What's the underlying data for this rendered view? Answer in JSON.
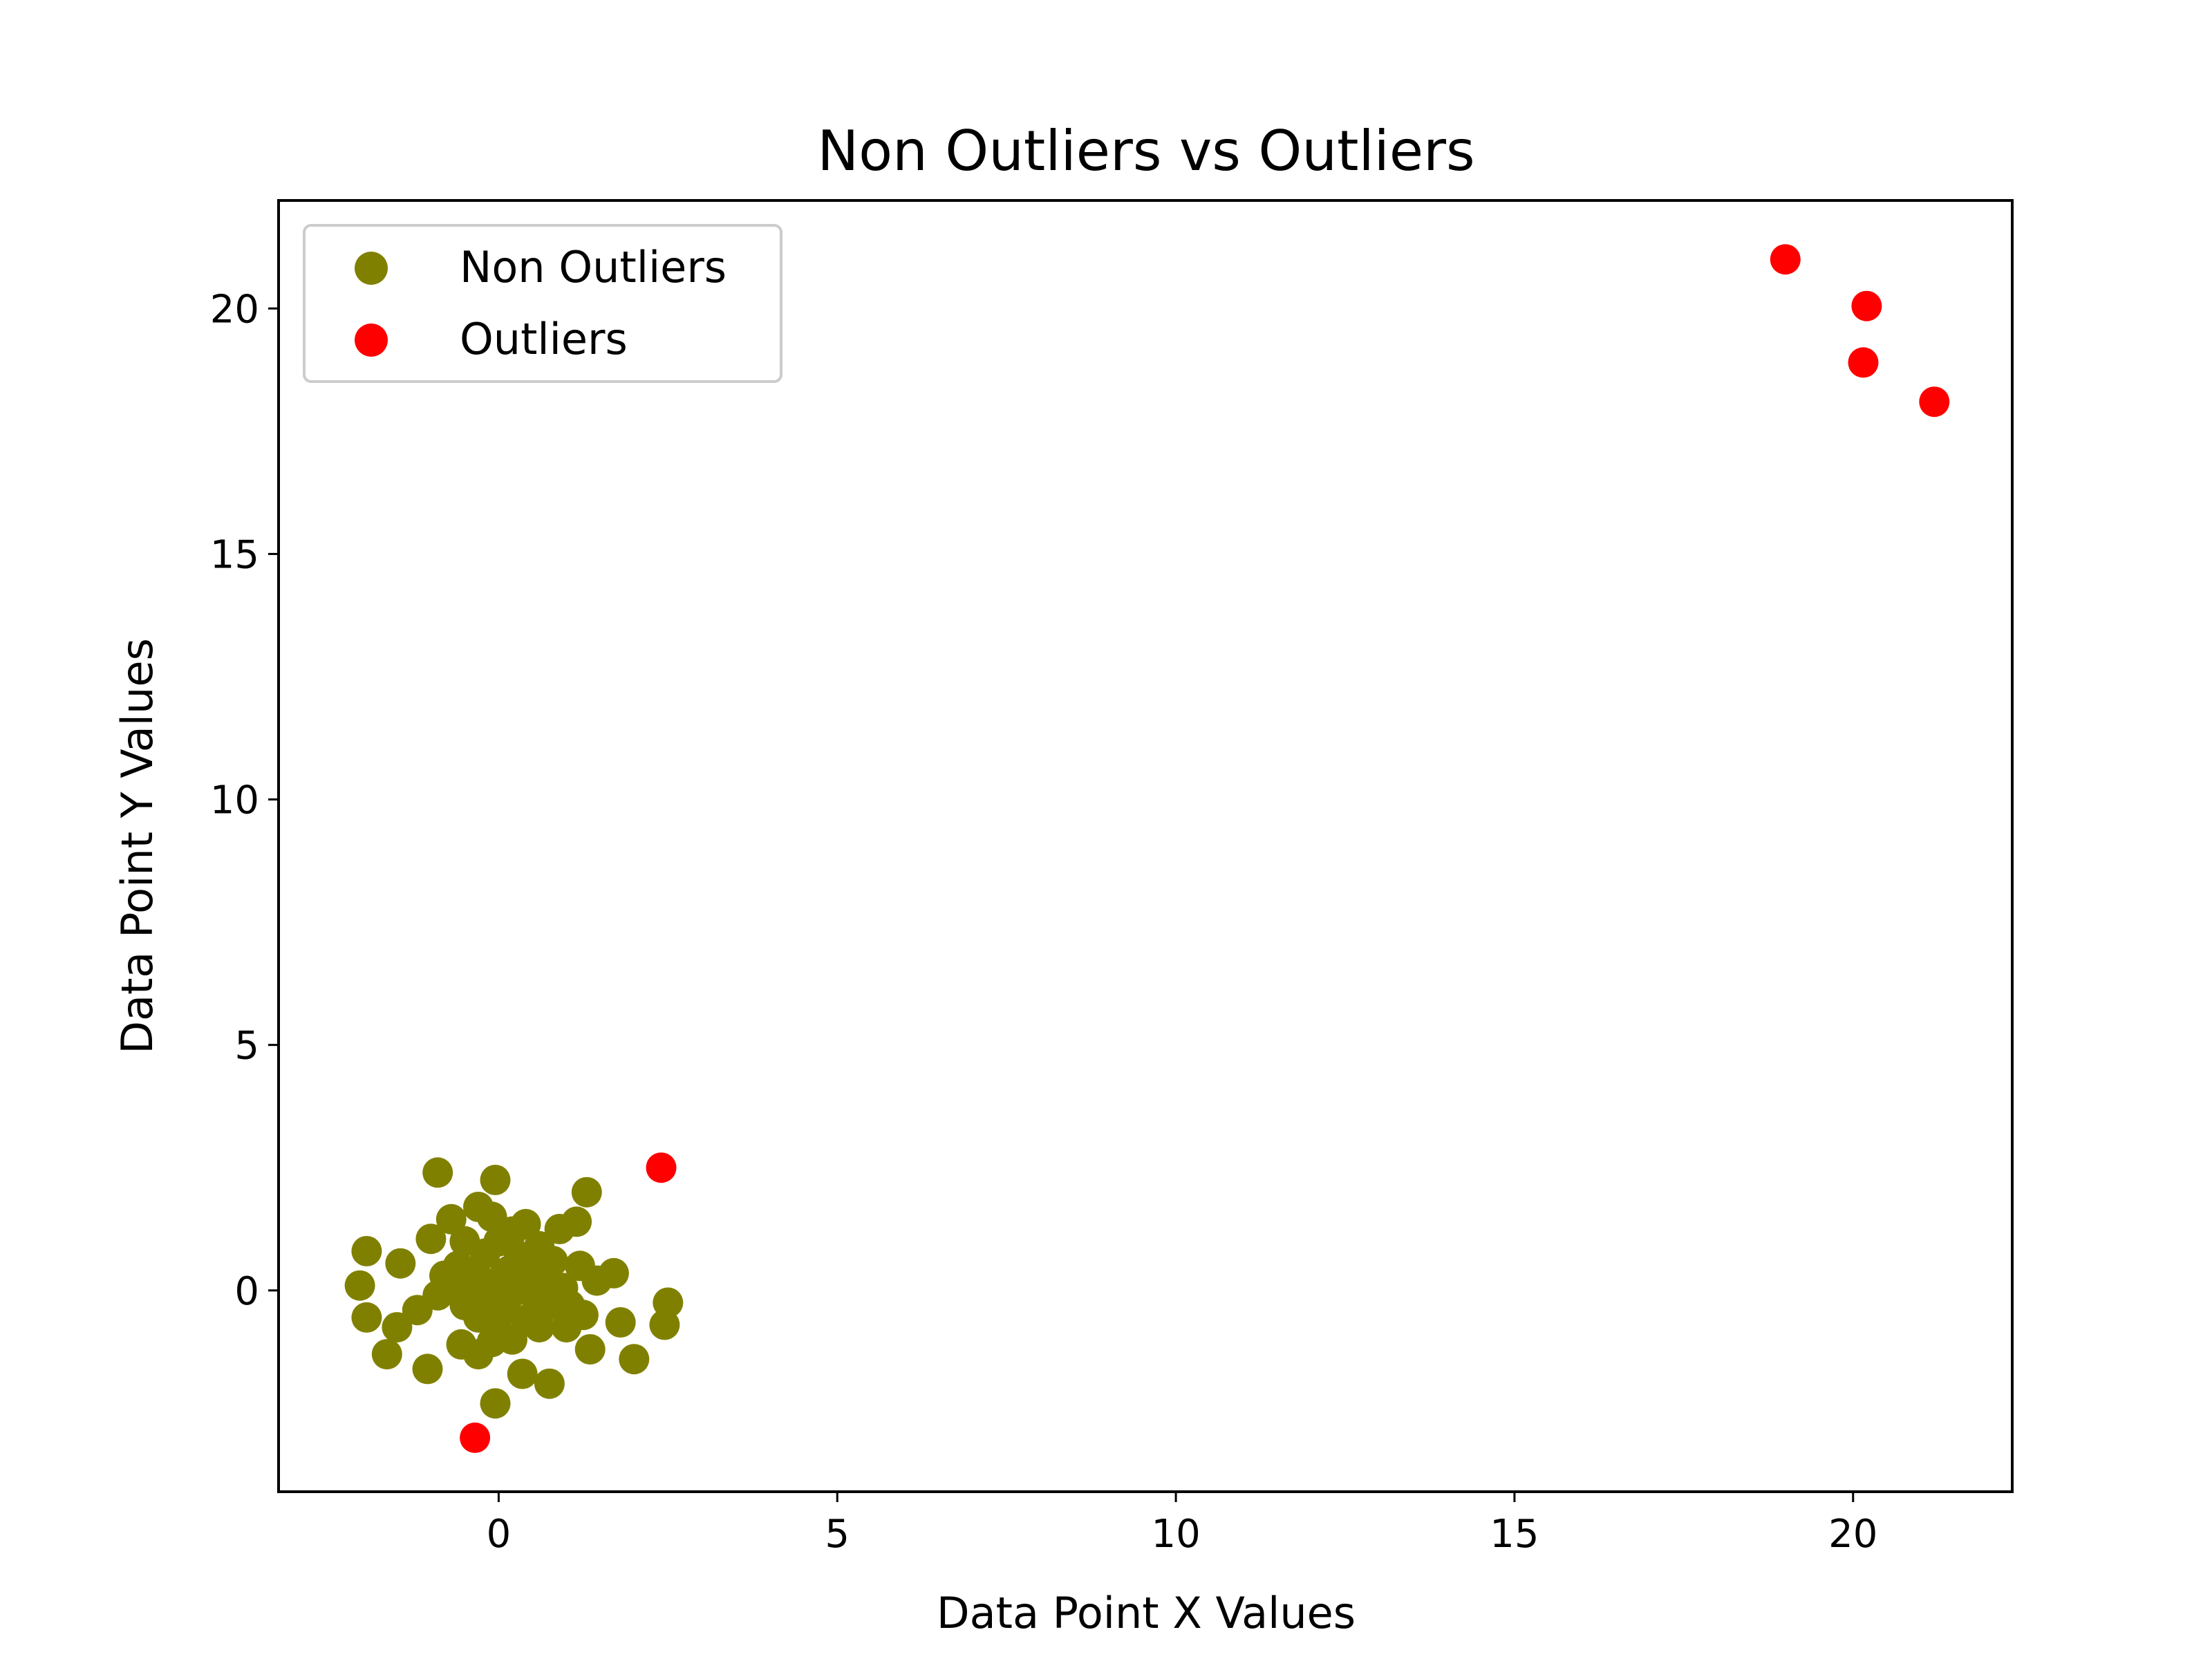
{
  "chart_data": {
    "type": "scatter",
    "title": "Non Outliers vs Outliers",
    "xlabel": "Data Point X Values",
    "ylabel": "Data Point Y Values",
    "xlim": [
      -3.25,
      22.35
    ],
    "ylim": [
      -4.1,
      22.2
    ],
    "xticks": [
      0,
      5,
      10,
      15,
      20
    ],
    "yticks": [
      0,
      5,
      10,
      15,
      20
    ],
    "grid": false,
    "legend_position": "upper-left",
    "series": [
      {
        "name": "Non Outliers",
        "color": "#808000",
        "points": [
          [
            -0.9,
            2.4
          ],
          [
            -0.05,
            2.25
          ],
          [
            1.3,
            2.0
          ],
          [
            -0.3,
            1.7
          ],
          [
            -0.1,
            1.5
          ],
          [
            -0.7,
            1.45
          ],
          [
            1.15,
            1.4
          ],
          [
            0.4,
            1.35
          ],
          [
            0.2,
            1.2
          ],
          [
            0.9,
            1.25
          ],
          [
            -1.0,
            1.05
          ],
          [
            -0.5,
            1.0
          ],
          [
            0.0,
            1.0
          ],
          [
            0.6,
            0.9
          ],
          [
            -1.95,
            0.8
          ],
          [
            -0.2,
            0.75
          ],
          [
            0.3,
            0.7
          ],
          [
            0.8,
            0.6
          ],
          [
            -1.45,
            0.55
          ],
          [
            -0.6,
            0.5
          ],
          [
            0.5,
            0.5
          ],
          [
            1.2,
            0.5
          ],
          [
            -0.35,
            0.4
          ],
          [
            0.15,
            0.4
          ],
          [
            1.7,
            0.35
          ],
          [
            -0.8,
            0.3
          ],
          [
            0.05,
            0.25
          ],
          [
            0.7,
            0.25
          ],
          [
            1.45,
            0.2
          ],
          [
            -2.05,
            0.1
          ],
          [
            -0.55,
            0.1
          ],
          [
            0.35,
            0.05
          ],
          [
            0.95,
            0.05
          ],
          [
            -0.25,
            0.0
          ],
          [
            0.2,
            -0.05
          ],
          [
            -0.9,
            -0.1
          ],
          [
            0.55,
            -0.15
          ],
          [
            -0.1,
            -0.2
          ],
          [
            2.5,
            -0.25
          ],
          [
            0.75,
            -0.3
          ],
          [
            -0.5,
            -0.3
          ],
          [
            1.05,
            -0.3
          ],
          [
            -1.2,
            -0.4
          ],
          [
            0.1,
            -0.4
          ],
          [
            1.25,
            -0.5
          ],
          [
            -1.95,
            -0.55
          ],
          [
            -0.3,
            -0.55
          ],
          [
            0.4,
            -0.6
          ],
          [
            1.8,
            -0.65
          ],
          [
            2.45,
            -0.7
          ],
          [
            -1.5,
            -0.75
          ],
          [
            0.6,
            -0.75
          ],
          [
            1.0,
            -0.75
          ],
          [
            -0.05,
            -0.85
          ],
          [
            -0.55,
            -1.1
          ],
          [
            0.2,
            -1.0
          ],
          [
            -1.65,
            -1.3
          ],
          [
            -0.3,
            -1.3
          ],
          [
            -0.1,
            -1.05
          ],
          [
            1.35,
            -1.2
          ],
          [
            2.0,
            -1.4
          ],
          [
            -1.05,
            -1.6
          ],
          [
            0.35,
            -1.7
          ],
          [
            0.75,
            -1.9
          ],
          [
            -0.05,
            -2.3
          ]
        ]
      },
      {
        "name": "Outliers",
        "color": "#ff0000",
        "points": [
          [
            19.0,
            21.0
          ],
          [
            20.2,
            20.05
          ],
          [
            20.15,
            18.9
          ],
          [
            21.2,
            18.1
          ],
          [
            2.4,
            2.5
          ],
          [
            -0.35,
            -3.0
          ]
        ]
      }
    ]
  }
}
